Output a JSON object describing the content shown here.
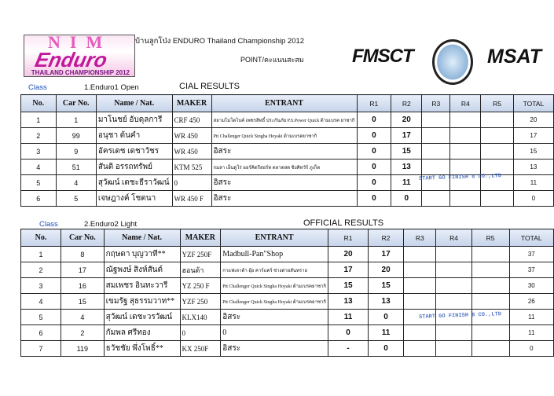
{
  "header": {
    "logo_text": [
      "NIM",
      "Enduro",
      "THAILAND CHAMPIONSHIP 2012"
    ],
    "title": "บ้านลูกโป่ง ENDURO Thailand Championship  2012",
    "subtitle": "POINT/คะแนนสะสม",
    "fmsct": "FMSCT",
    "msat": "MSAT",
    "club_text": "THAILAND"
  },
  "columns": [
    "No.",
    "Car No.",
    "Name / Nat.",
    "MAKER",
    "ENTRANT",
    "R1",
    "R2",
    "R3",
    "R4",
    "R5",
    "TOTAL"
  ],
  "tables": [
    {
      "class_label": "Class",
      "class_name": "1.Enduro1 Open",
      "results_title": "CIAL RESULTS",
      "rows": [
        [
          "1",
          "1",
          "มาโนชย์ อับดุลการี",
          "CRF 450",
          "สยามโมโตไบค์ เพชรสิทธิ์ ประกันภัย P.S.Power Quick ด้ามเบรค ยาซากิ",
          "0",
          "20",
          "",
          "",
          "",
          "20"
        ],
        [
          "2",
          "99",
          "อนุชา ต้นคำ",
          "WR 450",
          "Ptt Challenger Quick Singha Hoyaki  ด้ามเบรคยาซากิ",
          "0",
          "17",
          "",
          "",
          "",
          "17"
        ],
        [
          "3",
          "9",
          "อัครเดช เดชาวัชร",
          "WR 450",
          "อิสระ",
          "0",
          "15",
          "",
          "",
          "",
          "15"
        ],
        [
          "4",
          "51",
          "สันติ อรรถทรัพย์",
          "KTM 525",
          "กมลา เอ็นดูโร่ ออร์คิดรีสอร์ท ตลาดสด ชิงคิทวัร์ ภูเก็ต",
          "0",
          "13",
          "",
          "",
          "",
          "13"
        ],
        [
          "5",
          "4",
          "สุวัฒน์ เดชะธีราวัฒน์",
          "0",
          "อิสระ",
          "0",
          "11",
          "",
          "",
          "",
          "11"
        ],
        [
          "6",
          "5",
          "เจษฎางค์ โชตนา",
          "WR 450 F",
          "อิสระ",
          "0",
          "0",
          "",
          "",
          "",
          "0"
        ]
      ]
    },
    {
      "class_label": "Class",
      "class_name": "2.Enduro2 Light",
      "results_title": "OFFICIAL RESULTS",
      "rows": [
        [
          "1",
          "8",
          "กฤษดา บุญวาที**",
          "YZF 250F",
          "Madbull-Pan\"Shop",
          "20",
          "17",
          "",
          "",
          "",
          "37"
        ],
        [
          "2",
          "17",
          "ณัฐพงษ์ สิงห์สันต์",
          "ฮอนด้า",
          "กาแฟเลาต้า อุ้ย คาร์แคร์ ช่างต่ายสันทราย",
          "17",
          "20",
          "",
          "",
          "",
          "37"
        ],
        [
          "3",
          "16",
          "สมเพชร อินทะวารี",
          "YZ 250 F",
          "Ptt Challenger Quick Singha Hoyaki  ด้ามเบรคยาซากิ",
          "15",
          "15",
          "",
          "",
          "",
          "30"
        ],
        [
          "4",
          "15",
          "เขมรัฐ สุธรรมวาท**",
          "YZF 250",
          "Ptt Challenger Quick Singha Hoyaki  ด้ามเบรคยาซากิ",
          "13",
          "13",
          "",
          "",
          "",
          "26"
        ],
        [
          "5",
          "4",
          "สุวัฒน์ เดชะวรวัฒน์",
          "KLX140",
          "อิสระ",
          "11",
          "0",
          "",
          "",
          "",
          "11"
        ],
        [
          "6",
          "2",
          "กัมพล ศรีทอง",
          "0",
          "0",
          "0",
          "11",
          "",
          "",
          "",
          "11"
        ],
        [
          "7",
          "119",
          "ธวัชชัย พึ่งโพธิ์**",
          "KX 250F",
          "อิสระ",
          "-",
          "0",
          "",
          "",
          "",
          "0"
        ]
      ]
    }
  ],
  "stamp_text": "START GO FINISH 8 CO.,LTD"
}
